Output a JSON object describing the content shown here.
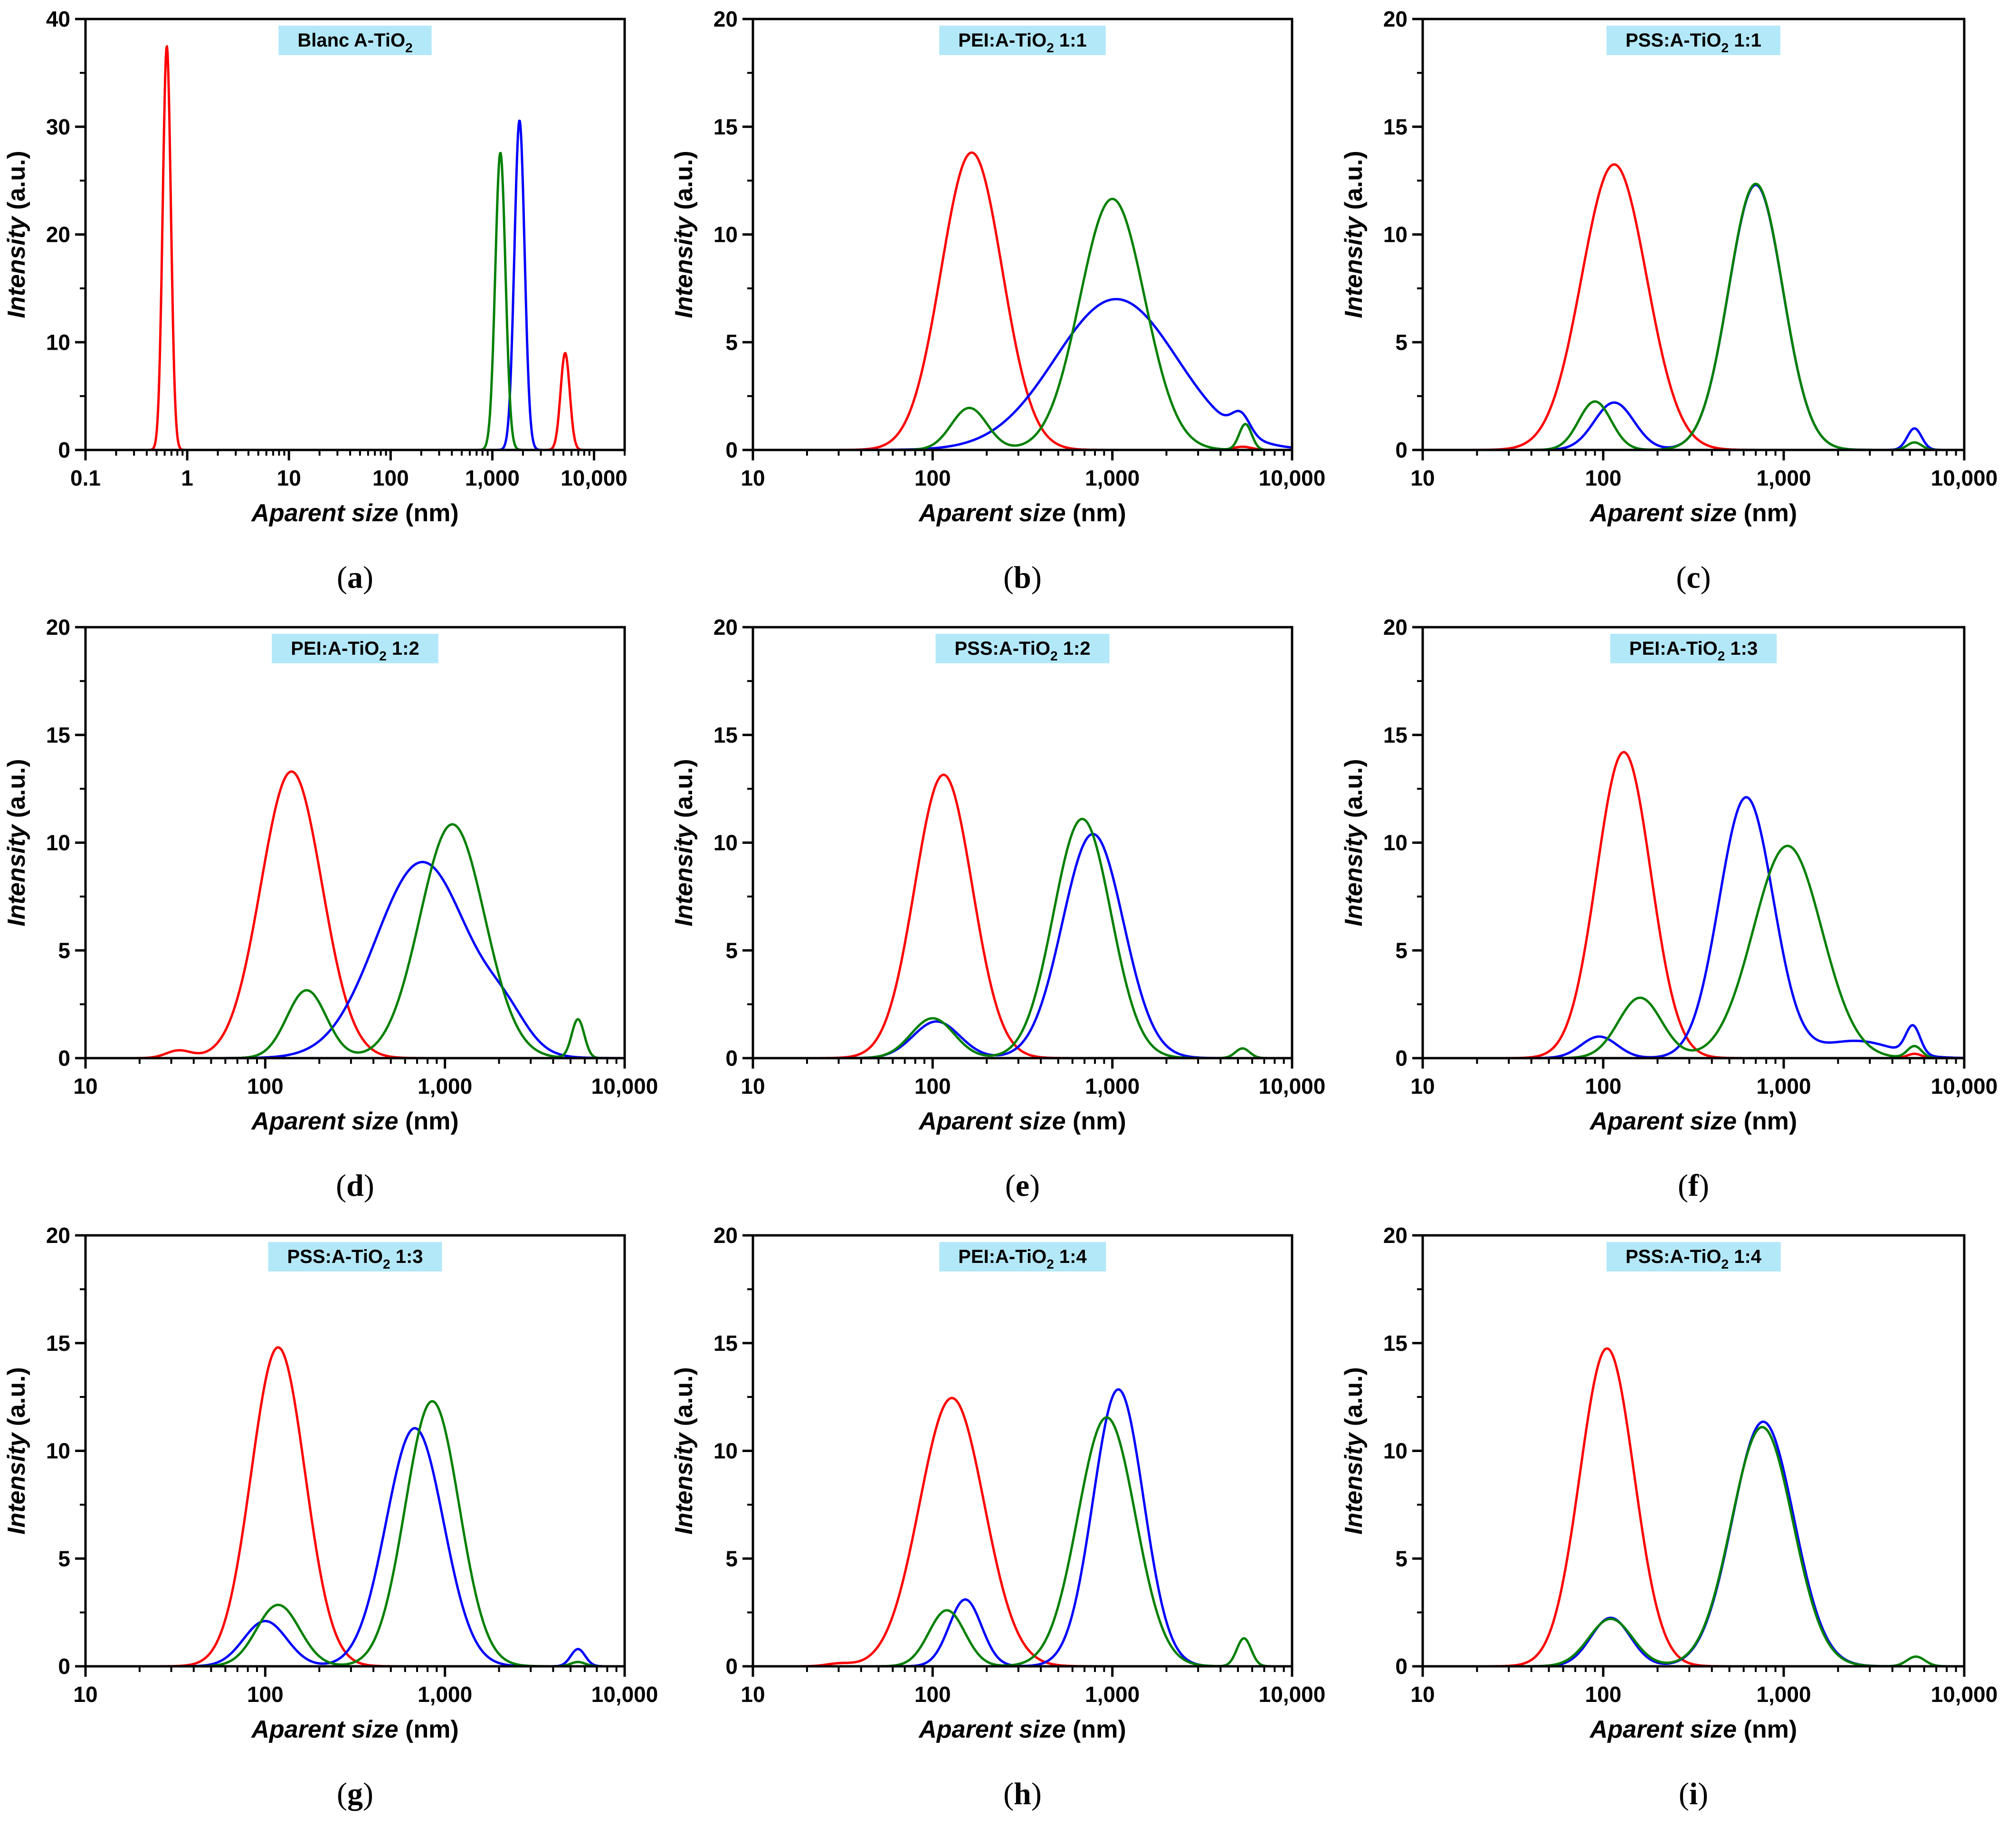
{
  "figure": {
    "colors": {
      "red": "#ff0000",
      "blue": "#0000ff",
      "green": "#008000",
      "title_bg": "#b3e8f9"
    },
    "axis": {
      "ylabel_italic": "Intensity",
      "ylabel_rest": " (a.u.)",
      "xlabel_italic": "Aparent size",
      "xlabel_rest": " (nm)"
    }
  },
  "chart_data": [
    {
      "type": "line",
      "letter": "a",
      "title": {
        "main": "Blanc A-TiO",
        "sub": "2",
        "rest": ""
      },
      "xscale": "log",
      "xlim": [
        0.1,
        20000
      ],
      "ylim": [
        0,
        40
      ],
      "xticks": [
        0.1,
        1,
        10,
        100,
        1000,
        10000
      ],
      "xtick_labels": [
        "0.1",
        "1",
        "10",
        "100",
        "1,000",
        "10,000"
      ],
      "yticks": [
        0,
        10,
        20,
        30,
        40
      ],
      "ytick_labels": [
        "0",
        "10",
        "20",
        "30",
        "40"
      ],
      "series": [
        {
          "name": "red",
          "peaks": [
            [
              0.63,
              37.5,
              0.04
            ],
            [
              5200,
              9.0,
              0.045
            ]
          ]
        },
        {
          "name": "blue",
          "peaks": [
            [
              1850,
              30.6,
              0.05
            ]
          ]
        },
        {
          "name": "green",
          "peaks": [
            [
              1200,
              27.6,
              0.05
            ]
          ]
        }
      ]
    },
    {
      "type": "line",
      "letter": "b",
      "title": {
        "main": "PEI:A-TiO",
        "sub": "2",
        "rest": " 1:1"
      },
      "xscale": "log",
      "xlim": [
        10,
        10000
      ],
      "ylim": [
        0,
        20
      ],
      "xticks": [
        10,
        100,
        1000,
        10000
      ],
      "xtick_labels": [
        "10",
        "100",
        "1,000",
        "10,000"
      ],
      "yticks": [
        0,
        5,
        10,
        15,
        20
      ],
      "ytick_labels": [
        "0",
        "5",
        "10",
        "15",
        "20"
      ],
      "series": [
        {
          "name": "red",
          "peaks": [
            [
              165,
              13.8,
              0.17
            ],
            [
              5300,
              0.15,
              0.05
            ]
          ]
        },
        {
          "name": "blue",
          "peaks": [
            [
              1050,
              7.0,
              0.34
            ],
            [
              5200,
              0.9,
              0.05
            ]
          ]
        },
        {
          "name": "green",
          "peaks": [
            [
              160,
              1.95,
              0.1
            ],
            [
              1000,
              11.65,
              0.18
            ],
            [
              5500,
              1.2,
              0.035
            ]
          ]
        }
      ]
    },
    {
      "type": "line",
      "letter": "c",
      "title": {
        "main": "PSS:A-TiO",
        "sub": "2",
        "rest": " 1:1"
      },
      "xscale": "log",
      "xlim": [
        10,
        10000
      ],
      "ylim": [
        0,
        20
      ],
      "xticks": [
        10,
        100,
        1000,
        10000
      ],
      "xtick_labels": [
        "10",
        "100",
        "1,000",
        "10,000"
      ],
      "yticks": [
        0,
        5,
        10,
        15,
        20
      ],
      "ytick_labels": [
        "0",
        "5",
        "10",
        "15",
        "20"
      ],
      "series": [
        {
          "name": "red",
          "peaks": [
            [
              115,
              13.25,
              0.18
            ]
          ]
        },
        {
          "name": "blue",
          "peaks": [
            [
              115,
              2.2,
              0.11
            ],
            [
              700,
              12.3,
              0.15
            ],
            [
              5300,
              1.0,
              0.04
            ]
          ]
        },
        {
          "name": "green",
          "peaks": [
            [
              90,
              2.25,
              0.09
            ],
            [
              700,
              12.35,
              0.15
            ],
            [
              5300,
              0.35,
              0.04
            ]
          ]
        }
      ]
    },
    {
      "type": "line",
      "letter": "d",
      "title": {
        "main": "PEI:A-TiO",
        "sub": "2",
        "rest": " 1:2"
      },
      "xscale": "log",
      "xlim": [
        10,
        10000
      ],
      "ylim": [
        0,
        20
      ],
      "xticks": [
        10,
        100,
        1000,
        10000
      ],
      "xtick_labels": [
        "10",
        "100",
        "1,000",
        "10,000"
      ],
      "yticks": [
        0,
        5,
        10,
        15,
        20
      ],
      "ytick_labels": [
        "0",
        "5",
        "10",
        "15",
        "20"
      ],
      "series": [
        {
          "name": "red",
          "peaks": [
            [
              140,
              13.3,
              0.17
            ],
            [
              33,
              0.35,
              0.07
            ]
          ]
        },
        {
          "name": "blue",
          "peaks": [
            [
              750,
              9.1,
              0.26
            ],
            [
              2200,
              1.2,
              0.12
            ]
          ]
        },
        {
          "name": "green",
          "peaks": [
            [
              170,
              3.15,
              0.11
            ],
            [
              1100,
              10.85,
              0.18
            ],
            [
              5500,
              1.8,
              0.035
            ]
          ]
        }
      ]
    },
    {
      "type": "line",
      "letter": "e",
      "title": {
        "main": "PSS:A-TiO",
        "sub": "2",
        "rest": " 1:2"
      },
      "xscale": "log",
      "xlim": [
        10,
        10000
      ],
      "ylim": [
        0,
        20
      ],
      "xticks": [
        10,
        100,
        1000,
        10000
      ],
      "xtick_labels": [
        "10",
        "100",
        "1,000",
        "10,000"
      ],
      "yticks": [
        0,
        5,
        10,
        15,
        20
      ],
      "ytick_labels": [
        "0",
        "5",
        "10",
        "15",
        "20"
      ],
      "series": [
        {
          "name": "red",
          "peaks": [
            [
              115,
              13.15,
              0.16
            ]
          ]
        },
        {
          "name": "blue",
          "peaks": [
            [
              105,
              1.7,
              0.13
            ],
            [
              780,
              10.4,
              0.17
            ]
          ]
        },
        {
          "name": "green",
          "peaks": [
            [
              100,
              1.85,
              0.12
            ],
            [
              680,
              11.1,
              0.16
            ],
            [
              5300,
              0.45,
              0.04
            ]
          ]
        }
      ]
    },
    {
      "type": "line",
      "letter": "f",
      "title": {
        "main": "PEI:A-TiO",
        "sub": "2",
        "rest": " 1:3"
      },
      "xscale": "log",
      "xlim": [
        10,
        10000
      ],
      "ylim": [
        0,
        20
      ],
      "xticks": [
        10,
        100,
        1000,
        10000
      ],
      "xtick_labels": [
        "10",
        "100",
        "1,000",
        "10,000"
      ],
      "yticks": [
        0,
        5,
        10,
        15,
        20
      ],
      "ytick_labels": [
        "0",
        "5",
        "10",
        "15",
        "20"
      ],
      "series": [
        {
          "name": "red",
          "peaks": [
            [
              130,
              14.2,
              0.15
            ],
            [
              5300,
              0.2,
              0.04
            ]
          ]
        },
        {
          "name": "blue",
          "peaks": [
            [
              95,
              1.0,
              0.1
            ],
            [
              620,
              12.1,
              0.15
            ],
            [
              2500,
              0.8,
              0.2
            ],
            [
              5200,
              1.3,
              0.04
            ]
          ]
        },
        {
          "name": "green",
          "peaks": [
            [
              160,
              2.8,
              0.12
            ],
            [
              1050,
              9.85,
              0.19
            ],
            [
              5300,
              0.55,
              0.04
            ]
          ]
        }
      ]
    },
    {
      "type": "line",
      "letter": "g",
      "title": {
        "main": "PSS:A-TiO",
        "sub": "2",
        "rest": " 1:3"
      },
      "xscale": "log",
      "xlim": [
        10,
        10000
      ],
      "ylim": [
        0,
        20
      ],
      "xticks": [
        10,
        100,
        1000,
        10000
      ],
      "xtick_labels": [
        "10",
        "100",
        "1,000",
        "10,000"
      ],
      "yticks": [
        0,
        5,
        10,
        15,
        20
      ],
      "ytick_labels": [
        "0",
        "5",
        "10",
        "15",
        "20"
      ],
      "series": [
        {
          "name": "red",
          "peaks": [
            [
              118,
              14.8,
              0.15
            ]
          ]
        },
        {
          "name": "blue",
          "peaks": [
            [
              100,
              2.1,
              0.12
            ],
            [
              680,
              11.05,
              0.16
            ],
            [
              5500,
              0.8,
              0.04
            ]
          ]
        },
        {
          "name": "green",
          "peaks": [
            [
              118,
              2.85,
              0.12
            ],
            [
              850,
              12.3,
              0.15
            ],
            [
              5500,
              0.2,
              0.04
            ]
          ]
        }
      ]
    },
    {
      "type": "line",
      "letter": "h",
      "title": {
        "main": "PEI:A-TiO",
        "sub": "2",
        "rest": " 1:4"
      },
      "xscale": "log",
      "xlim": [
        10,
        10000
      ],
      "ylim": [
        0,
        20
      ],
      "xticks": [
        10,
        100,
        1000,
        10000
      ],
      "xtick_labels": [
        "10",
        "100",
        "1,000",
        "10,000"
      ],
      "yticks": [
        0,
        5,
        10,
        15,
        20
      ],
      "ytick_labels": [
        "0",
        "5",
        "10",
        "15",
        "20"
      ],
      "series": [
        {
          "name": "red",
          "peaks": [
            [
              128,
              12.45,
              0.18
            ],
            [
              30,
              0.12,
              0.07
            ]
          ]
        },
        {
          "name": "blue",
          "peaks": [
            [
              152,
              3.1,
              0.09
            ],
            [
              1080,
              12.85,
              0.14
            ]
          ]
        },
        {
          "name": "green",
          "peaks": [
            [
              120,
              2.6,
              0.1
            ],
            [
              930,
              11.55,
              0.16
            ],
            [
              5400,
              1.3,
              0.04
            ]
          ]
        }
      ]
    },
    {
      "type": "line",
      "letter": "i",
      "title": {
        "main": "PSS:A-TiO",
        "sub": "2",
        "rest": " 1:4"
      },
      "xscale": "log",
      "xlim": [
        10,
        10000
      ],
      "ylim": [
        0,
        20
      ],
      "xticks": [
        10,
        100,
        1000,
        10000
      ],
      "xtick_labels": [
        "10",
        "100",
        "1,000",
        "10,000"
      ],
      "yticks": [
        0,
        5,
        10,
        15,
        20
      ],
      "ytick_labels": [
        "0",
        "5",
        "10",
        "15",
        "20"
      ],
      "series": [
        {
          "name": "red",
          "peaks": [
            [
              105,
              14.75,
              0.15
            ]
          ]
        },
        {
          "name": "blue",
          "peaks": [
            [
              110,
              2.25,
              0.11
            ],
            [
              770,
              11.35,
              0.17
            ]
          ]
        },
        {
          "name": "green",
          "peaks": [
            [
              110,
              2.2,
              0.12
            ],
            [
              760,
              11.1,
              0.17
            ],
            [
              5400,
              0.45,
              0.05
            ]
          ]
        }
      ]
    }
  ]
}
